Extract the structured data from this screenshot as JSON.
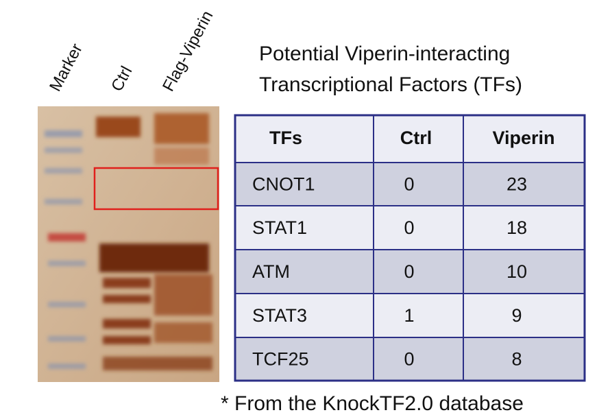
{
  "lanes": [
    "Marker",
    "Ctrl",
    "Flag-Viperin"
  ],
  "title": [
    "Potential Viperin-interacting",
    "Transcriptional Factors (TFs)"
  ],
  "table": {
    "header": [
      "TFs",
      "Ctrl",
      "Viperin"
    ],
    "rows": [
      [
        "CNOT1",
        "0",
        "23"
      ],
      [
        "STAT1",
        "0",
        "18"
      ],
      [
        "ATM",
        "0",
        "10"
      ],
      [
        "STAT3",
        "1",
        "9"
      ],
      [
        "TCF25",
        "0",
        "8"
      ]
    ]
  },
  "footnote": "* From the KnockTF2.0 database"
}
